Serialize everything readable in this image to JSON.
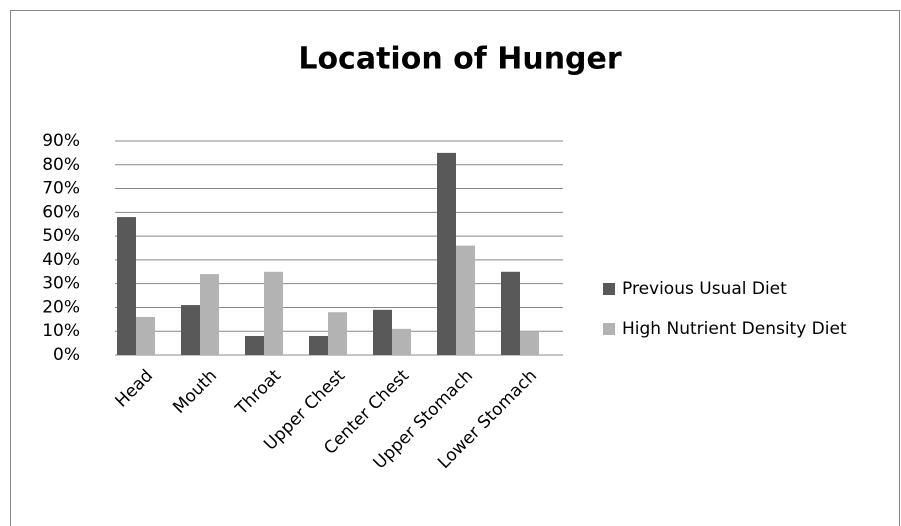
{
  "chart_data": {
    "type": "bar",
    "title": "Location of Hunger",
    "categories": [
      "Head",
      "Mouth",
      "Throat",
      "Upper Chest",
      "Center Chest",
      "Upper Stomach",
      "Lower Stomach"
    ],
    "series": [
      {
        "name": "Previous Usual Diet",
        "color": "#595959",
        "values": [
          58,
          21,
          8,
          8,
          19,
          85,
          35
        ]
      },
      {
        "name": "High Nutrient Density Diet",
        "color": "#b3b3b3",
        "values": [
          16,
          34,
          35,
          18,
          11,
          46,
          10
        ]
      }
    ],
    "ylim": [
      0,
      90
    ],
    "yticks": [
      {
        "value": 0,
        "label": "0%"
      },
      {
        "value": 10,
        "label": "10%"
      },
      {
        "value": 20,
        "label": "20%"
      },
      {
        "value": 30,
        "label": "30%"
      },
      {
        "value": 40,
        "label": "40%"
      },
      {
        "value": 50,
        "label": "50%"
      },
      {
        "value": 60,
        "label": "60%"
      },
      {
        "value": 70,
        "label": "70%"
      },
      {
        "value": 80,
        "label": "80%"
      },
      {
        "value": 90,
        "label": "90%"
      }
    ],
    "grid": true,
    "legend": "right"
  }
}
